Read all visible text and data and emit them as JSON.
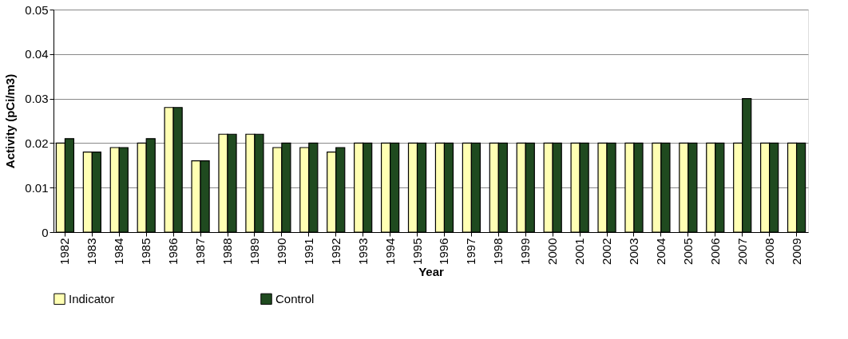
{
  "chart_data": {
    "type": "bar",
    "xlabel": "Year",
    "ylabel": "Activity (pCi/m3)",
    "categories": [
      "1982",
      "1983",
      "1984",
      "1985",
      "1986",
      "1987",
      "1988",
      "1989",
      "1990",
      "1991",
      "1992",
      "1993",
      "1994",
      "1995",
      "1996",
      "1997",
      "1998",
      "1999",
      "2000",
      "2001",
      "2002",
      "2003",
      "2004",
      "2005",
      "2006",
      "2007",
      "2008",
      "2009"
    ],
    "series": [
      {
        "name": "Indicator",
        "color": "#ffffb3",
        "values": [
          0.02,
          0.018,
          0.019,
          0.02,
          0.028,
          0.016,
          0.022,
          0.022,
          0.019,
          0.019,
          0.018,
          0.02,
          0.02,
          0.02,
          0.02,
          0.02,
          0.02,
          0.02,
          0.02,
          0.02,
          0.02,
          0.02,
          0.02,
          0.02,
          0.02,
          0.02,
          0.02,
          0.02
        ]
      },
      {
        "name": "Control",
        "color": "#1f4a1f",
        "values": [
          0.021,
          0.018,
          0.019,
          0.021,
          0.028,
          0.016,
          0.022,
          0.022,
          0.02,
          0.02,
          0.019,
          0.02,
          0.02,
          0.02,
          0.02,
          0.02,
          0.02,
          0.02,
          0.02,
          0.02,
          0.02,
          0.02,
          0.02,
          0.02,
          0.02,
          0.03,
          0.02,
          0.02
        ]
      }
    ],
    "ylim": [
      0,
      0.05
    ],
    "yticks": [
      0,
      0.01,
      0.02,
      0.03,
      0.04,
      0.05
    ],
    "grid": "y",
    "legend": "bottom"
  }
}
